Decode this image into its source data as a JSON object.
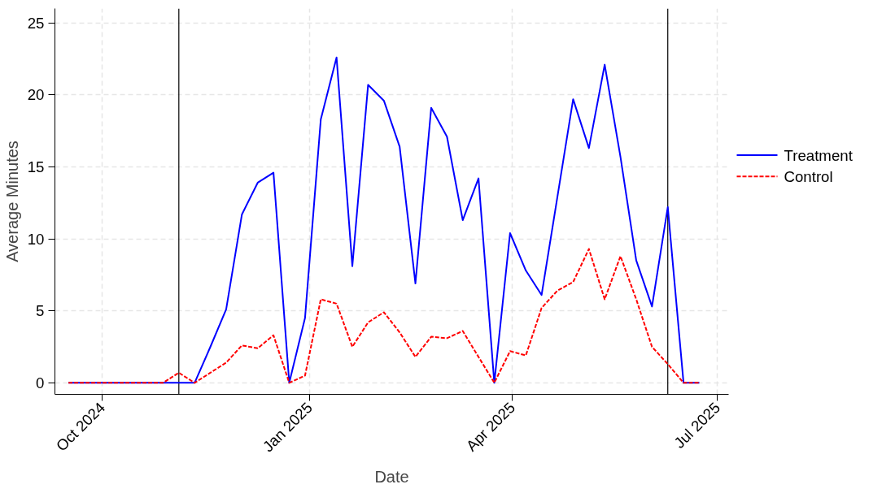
{
  "chart_data": {
    "type": "line",
    "xlabel": "Date",
    "ylabel": "Average Minutes",
    "x": [
      "2024-09-16",
      "2024-09-23",
      "2024-09-30",
      "2024-10-07",
      "2024-10-14",
      "2024-10-21",
      "2024-10-28",
      "2024-11-04",
      "2024-11-11",
      "2024-11-18",
      "2024-11-25",
      "2024-12-02",
      "2024-12-09",
      "2024-12-16",
      "2024-12-23",
      "2024-12-30",
      "2025-01-06",
      "2025-01-13",
      "2025-01-20",
      "2025-01-27",
      "2025-02-03",
      "2025-02-10",
      "2025-02-17",
      "2025-02-24",
      "2025-03-03",
      "2025-03-10",
      "2025-03-17",
      "2025-03-24",
      "2025-03-31",
      "2025-04-07",
      "2025-04-14",
      "2025-04-21",
      "2025-04-28",
      "2025-05-05",
      "2025-05-12",
      "2025-05-19",
      "2025-05-26",
      "2025-06-02",
      "2025-06-09",
      "2025-06-16",
      "2025-06-23"
    ],
    "series": [
      {
        "name": "Treatment",
        "color": "#0000ff",
        "line_style": "solid",
        "values": [
          0,
          0,
          0,
          0,
          0,
          0,
          0,
          0,
          0,
          2.5,
          5.1,
          11.7,
          13.9,
          14.6,
          0,
          4.5,
          18.3,
          22.6,
          8.1,
          20.7,
          19.6,
          16.4,
          6.9,
          19.1,
          17.1,
          11.3,
          14.2,
          0,
          10.4,
          7.8,
          6.1,
          12.9,
          19.7,
          16.3,
          22.1,
          15.7,
          8.5,
          5.3,
          12.2,
          0,
          0
        ]
      },
      {
        "name": "Control",
        "color": "#ff0000",
        "line_style": "dashed",
        "values": [
          0,
          0,
          0,
          0,
          0,
          0,
          0,
          0.7,
          0,
          0.7,
          1.4,
          2.6,
          2.4,
          3.3,
          0,
          0.5,
          5.8,
          5.5,
          2.5,
          4.2,
          4.9,
          3.5,
          1.8,
          3.2,
          3.1,
          3.6,
          1.8,
          0,
          2.2,
          1.9,
          5.2,
          6.4,
          7.0,
          9.3,
          5.8,
          8.8,
          5.8,
          2.5,
          1.3,
          0,
          0
        ]
      }
    ],
    "xlim": [
      "2024-09-10",
      "2025-07-06"
    ],
    "xticks": [
      {
        "value": "2024-10-01",
        "label": "Oct 2024"
      },
      {
        "value": "2025-01-01",
        "label": "Jan 2025"
      },
      {
        "value": "2025-04-01",
        "label": "Apr 2025"
      },
      {
        "value": "2025-07-01",
        "label": "Jul 2025"
      }
    ],
    "ylim": [
      -0.8,
      26
    ],
    "yticks": [
      0,
      5,
      10,
      15,
      20,
      25
    ],
    "ref_lines": [
      {
        "axis": "x",
        "value": "2024-11-04",
        "color": "#000000"
      },
      {
        "axis": "x",
        "value": "2025-06-09",
        "color": "#000000"
      }
    ],
    "grid": true,
    "legend": "right"
  }
}
